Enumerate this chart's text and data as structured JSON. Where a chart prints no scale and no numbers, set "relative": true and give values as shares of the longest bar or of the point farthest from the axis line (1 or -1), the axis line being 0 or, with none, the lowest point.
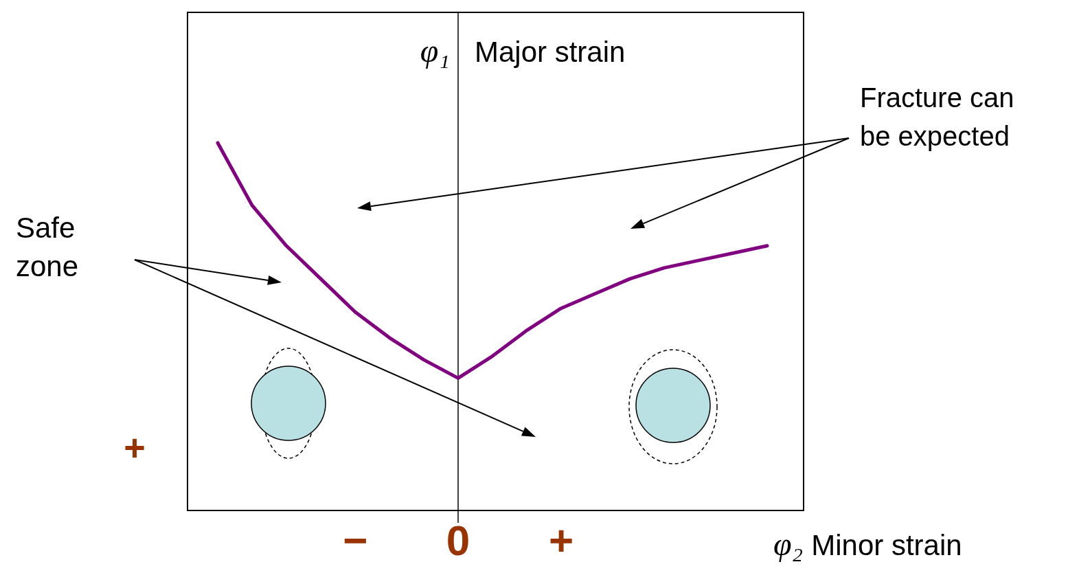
{
  "chart_data": {
    "type": "line",
    "relative": true,
    "xlabel": "φ₂ Minor strain",
    "ylabel": "φ₁ Major strain",
    "categories": [
      null,
      null,
      null,
      null,
      "−",
      null,
      null,
      "0",
      null,
      null,
      "+",
      null,
      null,
      null,
      null,
      null,
      null
    ],
    "series": [
      {
        "color": "#800080",
        "values": [
          1,
          0.83,
          0.72,
          0.63,
          0.54,
          0.47,
          0.41,
          0.36,
          0.42,
          0.49,
          0.55,
          0.59,
          0.63,
          0.66,
          0.68,
          0.7,
          0.72
        ]
      }
    ],
    "annotations": [
      "Safe zone",
      "Fracture can be expected",
      "+"
    ],
    "ref_lines": [
      {
        "axis": "x",
        "value": "0",
        "color": "#000000"
      }
    ],
    "grid": false,
    "marker": "none",
    "line_style": "solid"
  }
}
